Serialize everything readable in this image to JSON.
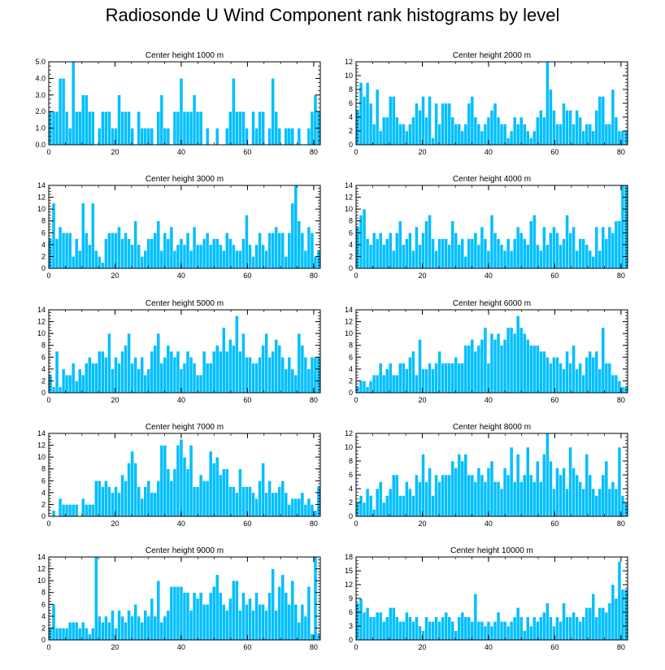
{
  "title": "Radiosonde U Wind Component rank histograms by level",
  "colors": {
    "bar": "#00bfff",
    "bar_edge": "#ffffff",
    "axis": "#000000"
  },
  "chart_data": [
    {
      "type": "bar",
      "title": "Center height 1000 m",
      "xlabel": "",
      "ylabel": "",
      "xlim": [
        0,
        82
      ],
      "ylim": [
        0,
        5
      ],
      "xticks": [
        0,
        20,
        40,
        60,
        80
      ],
      "yticks": [
        0,
        1,
        2,
        3,
        4,
        5
      ],
      "ytick_labels": [
        "0.0",
        "1.0",
        "2.0",
        "3.0",
        "4.0",
        "5.0"
      ],
      "values": [
        2,
        2,
        2,
        4,
        4,
        2,
        1,
        5,
        2,
        2,
        3,
        3,
        2,
        2,
        0,
        1,
        2,
        2,
        2,
        1,
        1,
        3,
        2,
        2,
        2,
        1,
        0,
        2,
        1,
        1,
        1,
        1,
        0,
        2,
        3,
        1,
        1,
        0,
        2,
        2,
        4,
        2,
        2,
        2,
        3,
        2,
        2,
        0,
        1,
        0,
        0,
        1,
        0,
        0,
        1,
        2,
        4,
        2,
        2,
        2,
        1,
        0,
        2,
        1,
        2,
        2,
        0,
        1,
        4,
        2,
        1,
        0,
        1,
        1,
        1,
        0,
        1,
        0,
        0,
        1,
        2,
        3,
        2
      ]
    },
    {
      "type": "bar",
      "title": "Center height 2000 m",
      "xlabel": "",
      "ylabel": "",
      "xlim": [
        0,
        82
      ],
      "ylim": [
        0,
        12
      ],
      "xticks": [
        0,
        20,
        40,
        60,
        80
      ],
      "yticks": [
        0,
        2,
        4,
        6,
        8,
        10,
        12
      ],
      "ytick_labels": [
        "0",
        "2",
        "4",
        "6",
        "8",
        "10",
        "12"
      ],
      "values": [
        5,
        9,
        7,
        9,
        6,
        3,
        8,
        2,
        4,
        4,
        7,
        7,
        4,
        3,
        3,
        2,
        3,
        4,
        6,
        5,
        7,
        4,
        7,
        1,
        6,
        3,
        6,
        6,
        6,
        4,
        3,
        3,
        2,
        3,
        6,
        7,
        4,
        3,
        2,
        3,
        4,
        5,
        6,
        4,
        3,
        3,
        1,
        2,
        4,
        3,
        4,
        3,
        2,
        1,
        2,
        4,
        5,
        4,
        12,
        8,
        5,
        3,
        3,
        6,
        5,
        5,
        3,
        5,
        4,
        2,
        3,
        3,
        2,
        5,
        7,
        7,
        3,
        3,
        8,
        4,
        2,
        2,
        2
      ]
    },
    {
      "type": "bar",
      "title": "Center height 3000 m",
      "xlabel": "",
      "ylabel": "",
      "xlim": [
        0,
        82
      ],
      "ylim": [
        0,
        14
      ],
      "xticks": [
        0,
        20,
        40,
        60,
        80
      ],
      "yticks": [
        0,
        2,
        4,
        6,
        8,
        10,
        12,
        14
      ],
      "ytick_labels": [
        "0",
        "2",
        "4",
        "6",
        "8",
        "10",
        "12",
        "14"
      ],
      "values": [
        5,
        11,
        5,
        7,
        6,
        6,
        6,
        2,
        5,
        3,
        11,
        6,
        4,
        11,
        3,
        2,
        1,
        5,
        6,
        6,
        6,
        7,
        5,
        6,
        5,
        4,
        8,
        4,
        2,
        3,
        5,
        5,
        6,
        8,
        3,
        6,
        5,
        7,
        3,
        4,
        5,
        4,
        6,
        3,
        7,
        4,
        4,
        5,
        6,
        4,
        5,
        5,
        4,
        3,
        6,
        5,
        4,
        3,
        3,
        5,
        9,
        4,
        2,
        4,
        6,
        4,
        3,
        6,
        6,
        7,
        6,
        6,
        2,
        6,
        11,
        14,
        8,
        6,
        3,
        7,
        6,
        2,
        3
      ]
    },
    {
      "type": "bar",
      "title": "Center height 4000 m",
      "xlabel": "",
      "ylabel": "",
      "xlim": [
        0,
        82
      ],
      "ylim": [
        0,
        14
      ],
      "xticks": [
        0,
        20,
        40,
        60,
        80
      ],
      "yticks": [
        0,
        2,
        4,
        6,
        8,
        10,
        12,
        14
      ],
      "ytick_labels": [
        "0",
        "2",
        "4",
        "6",
        "8",
        "10",
        "12",
        "14"
      ],
      "values": [
        7,
        9,
        10,
        5,
        4,
        6,
        5,
        6,
        4,
        5,
        6,
        3,
        6,
        8,
        4,
        5,
        6,
        3,
        7,
        4,
        6,
        8,
        9,
        5,
        3,
        5,
        5,
        5,
        4,
        8,
        6,
        4,
        5,
        2,
        5,
        5,
        6,
        4,
        7,
        5,
        3,
        9,
        6,
        5,
        4,
        3,
        5,
        3,
        5,
        7,
        6,
        5,
        4,
        8,
        9,
        4,
        3,
        7,
        4,
        6,
        7,
        6,
        4,
        5,
        9,
        6,
        7,
        3,
        5,
        5,
        4,
        3,
        2,
        7,
        3,
        7,
        5,
        7,
        6,
        8,
        8,
        14,
        14
      ]
    },
    {
      "type": "bar",
      "title": "Center height 5000 m",
      "xlabel": "",
      "ylabel": "",
      "xlim": [
        0,
        82
      ],
      "ylim": [
        0,
        14
      ],
      "xticks": [
        0,
        20,
        40,
        60,
        80
      ],
      "yticks": [
        0,
        2,
        4,
        6,
        8,
        10,
        12,
        14
      ],
      "ytick_labels": [
        "0",
        "2",
        "4",
        "6",
        "8",
        "10",
        "12",
        "14"
      ],
      "values": [
        3,
        1,
        7,
        1,
        4,
        3,
        3,
        5,
        2,
        4,
        3,
        5,
        6,
        5,
        5,
        7,
        7,
        6,
        10,
        4,
        6,
        5,
        7,
        8,
        10,
        5,
        6,
        4,
        6,
        3,
        4,
        7,
        8,
        10,
        5,
        6,
        8,
        7,
        6,
        7,
        4,
        5,
        7,
        6,
        5,
        3,
        3,
        7,
        5,
        5,
        7,
        8,
        7,
        11,
        7,
        9,
        8,
        13,
        7,
        10,
        6,
        6,
        5,
        5,
        6,
        8,
        10,
        6,
        7,
        9,
        8,
        6,
        4,
        6,
        4,
        3,
        10,
        8,
        6,
        4,
        6,
        6,
        6
      ]
    },
    {
      "type": "bar",
      "title": "Center height 6000 m",
      "xlabel": "",
      "ylabel": "",
      "xlim": [
        0,
        82
      ],
      "ylim": [
        0,
        14
      ],
      "xticks": [
        0,
        20,
        40,
        60,
        80
      ],
      "yticks": [
        0,
        2,
        4,
        6,
        8,
        10,
        12,
        14
      ],
      "ytick_labels": [
        "0",
        "2",
        "4",
        "6",
        "8",
        "10",
        "12",
        "14"
      ],
      "values": [
        1,
        2,
        2,
        1,
        2,
        3,
        3,
        5,
        3,
        4,
        5,
        3,
        3,
        5,
        5,
        4,
        6,
        7,
        3,
        9,
        4,
        4,
        5,
        4,
        5,
        7,
        5,
        5,
        5,
        5,
        6,
        5,
        5,
        8,
        8,
        9,
        7,
        8,
        9,
        11,
        5,
        10,
        9,
        10,
        8,
        9,
        11,
        11,
        10,
        13,
        11,
        10,
        9,
        8,
        8,
        8,
        7,
        7,
        6,
        5,
        6,
        6,
        5,
        4,
        7,
        5,
        8,
        4,
        5,
        3,
        6,
        7,
        6,
        7,
        4,
        11,
        5,
        5,
        3,
        3,
        2,
        1,
        1
      ]
    },
    {
      "type": "bar",
      "title": "Center height 7000 m",
      "xlabel": "",
      "ylabel": "",
      "xlim": [
        0,
        82
      ],
      "ylim": [
        0,
        14
      ],
      "xticks": [
        0,
        20,
        40,
        60,
        80
      ],
      "yticks": [
        0,
        2,
        4,
        6,
        8,
        10,
        12,
        14
      ],
      "ytick_labels": [
        "0",
        "2",
        "4",
        "6",
        "8",
        "10",
        "12",
        "14"
      ],
      "values": [
        0,
        1,
        0,
        3,
        2,
        2,
        2,
        2,
        2,
        0,
        3,
        2,
        2,
        2,
        6,
        6,
        5,
        6,
        5,
        4,
        5,
        4,
        7,
        6,
        9,
        11,
        9,
        5,
        3,
        5,
        6,
        4,
        4,
        6,
        12,
        12,
        8,
        6,
        8,
        12,
        13,
        10,
        8,
        12,
        5,
        5,
        7,
        6,
        6,
        11,
        9,
        10,
        7,
        8,
        8,
        5,
        5,
        4,
        8,
        5,
        5,
        5,
        4,
        3,
        6,
        9,
        4,
        6,
        4,
        4,
        5,
        6,
        4,
        2,
        3,
        3,
        3,
        4,
        2,
        3,
        2,
        1,
        5
      ]
    },
    {
      "type": "bar",
      "title": "Center height 8000 m",
      "xlabel": "",
      "ylabel": "",
      "xlim": [
        0,
        82
      ],
      "ylim": [
        0,
        12
      ],
      "xticks": [
        0,
        20,
        40,
        60,
        80
      ],
      "yticks": [
        0,
        2,
        4,
        6,
        8,
        10,
        12
      ],
      "ytick_labels": [
        "0",
        "2",
        "4",
        "6",
        "8",
        "10",
        "12"
      ],
      "values": [
        2,
        3,
        2,
        4,
        3,
        1,
        4,
        5,
        2,
        3,
        4,
        6,
        6,
        3,
        3,
        5,
        4,
        3,
        6,
        5,
        9,
        5,
        7,
        3,
        6,
        5,
        6,
        6,
        6,
        8,
        7,
        9,
        8,
        9,
        6,
        6,
        5,
        7,
        6,
        5,
        7,
        8,
        5,
        5,
        4,
        7,
        6,
        10,
        5,
        9,
        5,
        6,
        10,
        6,
        5,
        8,
        5,
        9,
        12,
        8,
        4,
        7,
        6,
        7,
        4,
        10,
        7,
        6,
        5,
        4,
        9,
        6,
        4,
        3,
        4,
        6,
        8,
        4,
        5,
        4,
        10,
        3,
        2
      ]
    },
    {
      "type": "bar",
      "title": "Center height 9000 m",
      "xlabel": "",
      "ylabel": "",
      "xlim": [
        0,
        82
      ],
      "ylim": [
        0,
        14
      ],
      "xticks": [
        0,
        20,
        40,
        60,
        80
      ],
      "yticks": [
        0,
        2,
        4,
        6,
        8,
        10,
        12,
        14
      ],
      "ytick_labels": [
        "0",
        "2",
        "4",
        "6",
        "8",
        "10",
        "12",
        "14"
      ],
      "values": [
        2,
        6,
        2,
        2,
        2,
        2,
        3,
        3,
        3,
        2,
        3,
        2,
        1,
        2,
        14,
        4,
        3,
        4,
        3,
        5,
        2,
        5,
        4,
        3,
        5,
        4,
        6,
        4,
        3,
        5,
        4,
        7,
        4,
        10,
        3,
        4,
        5,
        9,
        9,
        9,
        9,
        8,
        8,
        5,
        8,
        7,
        8,
        6,
        6,
        8,
        9,
        11,
        8,
        6,
        5,
        7,
        10,
        10,
        5,
        8,
        6,
        7,
        5,
        8,
        6,
        6,
        5,
        8,
        12,
        5,
        9,
        11,
        8,
        6,
        10,
        6,
        3,
        6,
        4,
        9,
        1,
        14,
        1
      ]
    },
    {
      "type": "bar",
      "title": "Center height 10000 m",
      "xlabel": "",
      "ylabel": "",
      "xlim": [
        0,
        82
      ],
      "ylim": [
        0,
        18
      ],
      "xticks": [
        0,
        20,
        40,
        60,
        80
      ],
      "yticks": [
        0,
        3,
        6,
        9,
        12,
        15,
        18
      ],
      "ytick_labels": [
        "0",
        "3",
        "6",
        "9",
        "12",
        "15",
        "18"
      ],
      "values": [
        8,
        9,
        6,
        7,
        5,
        5,
        6,
        6,
        4,
        5,
        7,
        7,
        5,
        4,
        4,
        6,
        5,
        4,
        5,
        3,
        2,
        5,
        4,
        4,
        5,
        4,
        5,
        6,
        5,
        4,
        2,
        5,
        6,
        5,
        5,
        4,
        10,
        4,
        4,
        3,
        4,
        3,
        4,
        6,
        4,
        4,
        3,
        4,
        5,
        7,
        5,
        2,
        5,
        3,
        5,
        4,
        5,
        6,
        8,
        5,
        3,
        5,
        4,
        8,
        5,
        5,
        6,
        5,
        4,
        5,
        7,
        7,
        10,
        5,
        7,
        7,
        6,
        8,
        12,
        9,
        17,
        11,
        11
      ]
    }
  ]
}
